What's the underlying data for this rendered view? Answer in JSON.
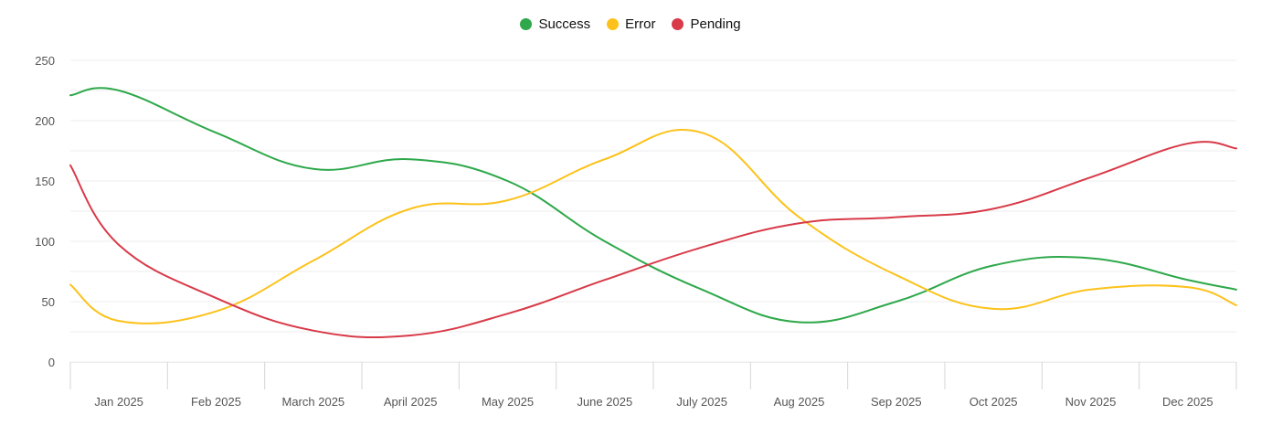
{
  "colors": {
    "success": "#2ea84a",
    "error": "#fcc21b",
    "pending": "#d83a48",
    "grid": "#ececec",
    "axis": "#d6d6d6"
  },
  "chart_data": {
    "type": "line",
    "title": "",
    "xlabel": "",
    "ylabel": "",
    "legend_position": "top-center",
    "grid": true,
    "ylim": [
      0,
      250
    ],
    "yticks": [
      0,
      50,
      100,
      150,
      200,
      250
    ],
    "categories": [
      "Jan 2025",
      "Feb 2025",
      "March 2025",
      "April 2025",
      "May 2025",
      "June 2025",
      "July 2025",
      "Aug 2025",
      "Sep 2025",
      "Oct 2025",
      "Nov 2025",
      "Dec 2025"
    ],
    "series": [
      {
        "name": "Success",
        "color": "#2ea84a",
        "start": 221,
        "values": [
          225,
          190,
          160,
          168,
          150,
          100,
          60,
          33,
          50,
          80,
          86,
          68
        ],
        "end": 60
      },
      {
        "name": "Error",
        "color": "#fcc21b",
        "start": 64,
        "values": [
          34,
          42,
          84,
          127,
          134,
          168,
          190,
          120,
          72,
          44,
          60,
          62
        ],
        "end": 47
      },
      {
        "name": "Pending",
        "color": "#d83a48",
        "start": 163,
        "values": [
          97,
          53,
          26,
          22,
          40,
          68,
          95,
          115,
          120,
          127,
          153,
          181
        ],
        "end": 177
      }
    ]
  }
}
